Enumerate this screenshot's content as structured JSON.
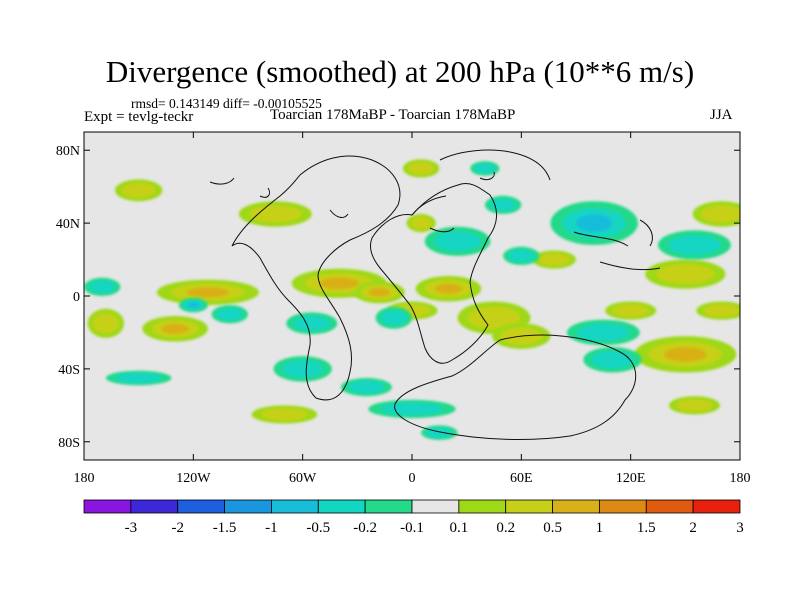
{
  "title": "Divergence (smoothed) at 200 hPa (10**6 m/s)",
  "stats": "rmsd= 0.143149 diff= -0.00105525",
  "expt": "Expt = tevlg-teckr",
  "subtitle": "Toarcian 178MaBP - Toarcian 178MaBP",
  "season": "JJA",
  "axes": {
    "lat_labels": [
      "80N",
      "40N",
      "0",
      "40S",
      "80S"
    ],
    "lon_labels": [
      "180",
      "120W",
      "60W",
      "0",
      "60E",
      "120E",
      "180"
    ]
  },
  "colorbar": {
    "labels": [
      "-3",
      "-2",
      "-1.5",
      "-1",
      "-0.5",
      "-0.2",
      "-0.1",
      "0.1",
      "0.2",
      "0.5",
      "1",
      "1.5",
      "2",
      "3"
    ],
    "colors": [
      "#8a14e0",
      "#3c28d8",
      "#1e5fe0",
      "#1a96de",
      "#18bdda",
      "#12d5c2",
      "#24d98a",
      "#e6e6e6",
      "#9ed816",
      "#c6d018",
      "#d8b018",
      "#dc8a14",
      "#e05a10",
      "#e8200e"
    ]
  },
  "chart_data": {
    "type": "heatmap",
    "title": "Divergence (smoothed) at 200 hPa (10**6 m/s)",
    "variable": "Divergence (smoothed)",
    "level": "200 hPa",
    "units": "10**6 m/s",
    "season": "JJA",
    "rmsd": 0.143149,
    "diff": -0.00105525,
    "x_range": [
      -180,
      180
    ],
    "y_range": [
      -90,
      90
    ],
    "x_ticks": [
      -180,
      -120,
      -60,
      0,
      60,
      120,
      180
    ],
    "y_ticks": [
      80,
      40,
      0,
      -40,
      -80
    ],
    "contour_levels": [
      -3,
      -2,
      -1.5,
      -1,
      -0.5,
      -0.2,
      -0.1,
      0.1,
      0.2,
      0.5,
      1,
      1.5,
      2,
      3
    ],
    "blobs": [
      {
        "lon": -112,
        "lat": 2,
        "rx": 28,
        "ry": 7,
        "v": 0.5
      },
      {
        "lon": -168,
        "lat": -15,
        "rx": 10,
        "ry": 8,
        "v": 0.4
      },
      {
        "lon": -130,
        "lat": -18,
        "rx": 18,
        "ry": 7,
        "v": 0.55
      },
      {
        "lon": -40,
        "lat": 7,
        "rx": 26,
        "ry": 8,
        "v": 0.7
      },
      {
        "lon": -18,
        "lat": 2,
        "rx": 14,
        "ry": 6,
        "v": 0.6
      },
      {
        "lon": 20,
        "lat": 4,
        "rx": 18,
        "ry": 7,
        "v": 0.7
      },
      {
        "lon": 0,
        "lat": -8,
        "rx": 14,
        "ry": 5,
        "v": 0.3
      },
      {
        "lon": 45,
        "lat": -12,
        "rx": 20,
        "ry": 9,
        "v": 0.4
      },
      {
        "lon": 60,
        "lat": -22,
        "rx": 16,
        "ry": 7,
        "v": 0.35
      },
      {
        "lon": 150,
        "lat": -32,
        "rx": 28,
        "ry": 10,
        "v": 0.65
      },
      {
        "lon": 170,
        "lat": -8,
        "rx": 14,
        "ry": 5,
        "v": 0.35
      },
      {
        "lon": 150,
        "lat": 12,
        "rx": 22,
        "ry": 8,
        "v": 0.35
      },
      {
        "lon": 170,
        "lat": 45,
        "rx": 16,
        "ry": 7,
        "v": 0.25
      },
      {
        "lon": -150,
        "lat": 58,
        "rx": 13,
        "ry": 6,
        "v": 0.3
      },
      {
        "lon": -75,
        "lat": 45,
        "rx": 20,
        "ry": 7,
        "v": 0.3
      },
      {
        "lon": 5,
        "lat": 40,
        "rx": 8,
        "ry": 5,
        "v": 0.3
      },
      {
        "lon": -70,
        "lat": -65,
        "rx": 18,
        "ry": 5,
        "v": 0.3
      },
      {
        "lon": 155,
        "lat": -60,
        "rx": 14,
        "ry": 5,
        "v": 0.3
      },
      {
        "lon": 78,
        "lat": 20,
        "rx": 12,
        "ry": 5,
        "v": 0.3
      },
      {
        "lon": 5,
        "lat": 70,
        "rx": 10,
        "ry": 5,
        "v": 0.25
      },
      {
        "lon": 120,
        "lat": -8,
        "rx": 14,
        "ry": 5,
        "v": 0.3
      },
      {
        "lon": 100,
        "lat": 40,
        "rx": 24,
        "ry": 12,
        "v": -0.5
      },
      {
        "lon": -120,
        "lat": -5,
        "rx": 8,
        "ry": 4,
        "v": -0.5
      },
      {
        "lon": -100,
        "lat": -10,
        "rx": 10,
        "ry": 5,
        "v": -0.4
      },
      {
        "lon": -55,
        "lat": -15,
        "rx": 14,
        "ry": 6,
        "v": -0.3
      },
      {
        "lon": 25,
        "lat": 30,
        "rx": 18,
        "ry": 8,
        "v": -0.3
      },
      {
        "lon": -10,
        "lat": -12,
        "rx": 10,
        "ry": 6,
        "v": -0.3
      },
      {
        "lon": -60,
        "lat": -40,
        "rx": 16,
        "ry": 7,
        "v": -0.3
      },
      {
        "lon": -25,
        "lat": -50,
        "rx": 14,
        "ry": 5,
        "v": -0.3
      },
      {
        "lon": 105,
        "lat": -20,
        "rx": 20,
        "ry": 7,
        "v": -0.35
      },
      {
        "lon": 110,
        "lat": -35,
        "rx": 16,
        "ry": 7,
        "v": -0.3
      },
      {
        "lon": 155,
        "lat": 28,
        "rx": 20,
        "ry": 8,
        "v": -0.3
      },
      {
        "lon": 60,
        "lat": 22,
        "rx": 10,
        "ry": 5,
        "v": -0.3
      },
      {
        "lon": -150,
        "lat": -45,
        "rx": 18,
        "ry": 4,
        "v": -0.3
      },
      {
        "lon": 0,
        "lat": -62,
        "rx": 24,
        "ry": 5,
        "v": -0.3
      },
      {
        "lon": 15,
        "lat": -75,
        "rx": 10,
        "ry": 4,
        "v": -0.3
      },
      {
        "lon": 50,
        "lat": 50,
        "rx": 10,
        "ry": 5,
        "v": -0.2
      },
      {
        "lon": 40,
        "lat": 70,
        "rx": 8,
        "ry": 4,
        "v": -0.2
      },
      {
        "lon": -170,
        "lat": 5,
        "rx": 10,
        "ry": 5,
        "v": -0.2
      }
    ]
  }
}
